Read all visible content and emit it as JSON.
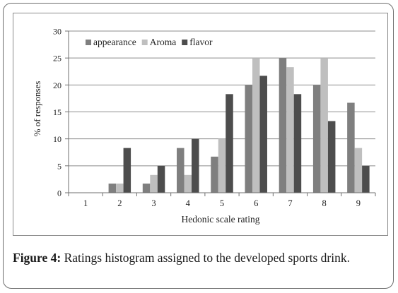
{
  "chart_data": {
    "type": "bar",
    "categories": [
      "1",
      "2",
      "3",
      "4",
      "5",
      "6",
      "7",
      "8",
      "9"
    ],
    "series": [
      {
        "name": "appearance",
        "color": "#7f7f7f",
        "values": [
          0,
          1.7,
          1.7,
          8.3,
          6.7,
          20,
          25,
          20,
          16.7
        ]
      },
      {
        "name": "Aroma",
        "color": "#bfbfbf",
        "values": [
          0,
          1.7,
          3.3,
          3.3,
          10,
          25,
          23.3,
          25,
          8.3
        ]
      },
      {
        "name": "flavor",
        "color": "#4d4d4d",
        "values": [
          0,
          8.3,
          5,
          10,
          18.3,
          21.7,
          18.3,
          13.3,
          5
        ]
      }
    ],
    "xlabel": "Hedonic scale rating",
    "ylabel": "% of responses",
    "ylim": [
      0,
      30
    ],
    "yticks": [
      0,
      5,
      10,
      15,
      20,
      25,
      30
    ],
    "grid": true,
    "legend": "top-left"
  },
  "caption": {
    "label": "Figure 4:",
    "text": " Ratings histogram assigned to the developed sports drink."
  }
}
